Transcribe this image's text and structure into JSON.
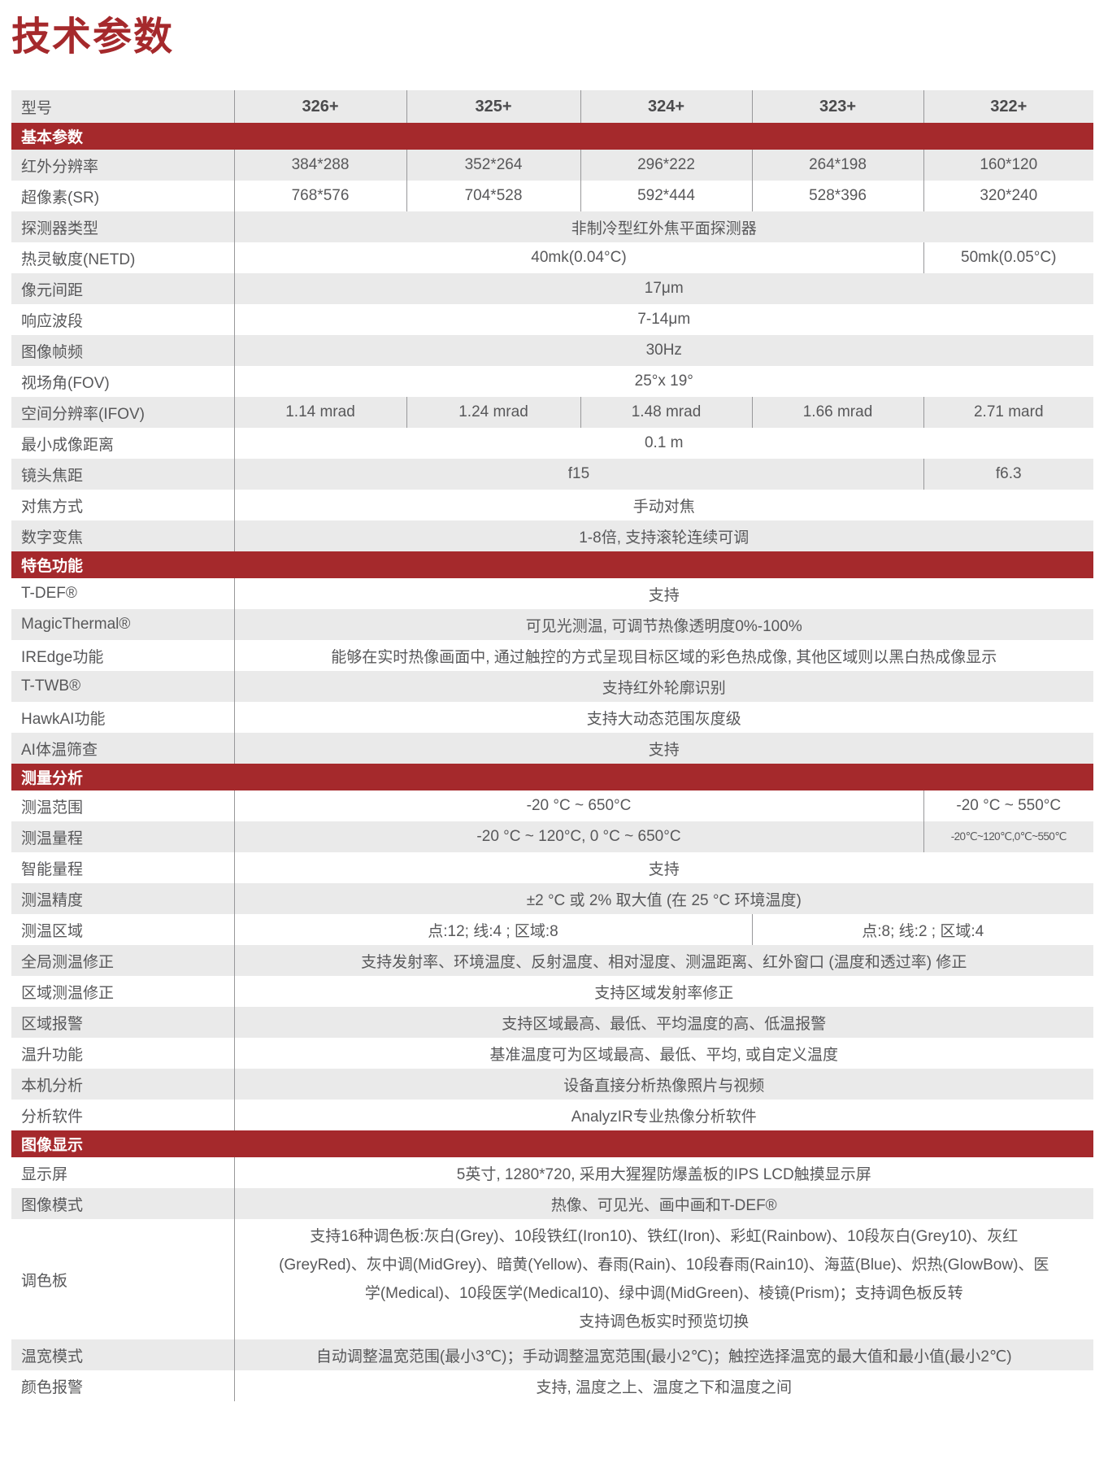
{
  "page_title": "技术参数",
  "colors": {
    "accent": "#A5292C",
    "row_shade": "#EAEAEA",
    "divider": "#98989A",
    "text": "#58585A",
    "header_text": "#4B4B4D"
  },
  "table": {
    "header": {
      "label": "型号",
      "models": [
        "326+",
        "325+",
        "324+",
        "323+",
        "322+"
      ]
    },
    "sections": [
      {
        "title": "基本参数",
        "rows": [
          {
            "label": "红外分辨率",
            "cells": [
              {
                "text": "384*288",
                "span": 1
              },
              {
                "text": "352*264",
                "span": 1
              },
              {
                "text": "296*222",
                "span": 1
              },
              {
                "text": "264*198",
                "span": 1
              },
              {
                "text": "160*120",
                "span": 1
              }
            ]
          },
          {
            "label": "超像素(SR)",
            "cells": [
              {
                "text": "768*576",
                "span": 1
              },
              {
                "text": "704*528",
                "span": 1
              },
              {
                "text": "592*444",
                "span": 1
              },
              {
                "text": "528*396",
                "span": 1
              },
              {
                "text": "320*240",
                "span": 1
              }
            ]
          },
          {
            "label": "探测器类型",
            "cells": [
              {
                "text": "非制冷型红外焦平面探测器",
                "span": 5
              }
            ]
          },
          {
            "label": "热灵敏度(NETD)",
            "cells": [
              {
                "text": "40mk(0.04°C)",
                "span": 4
              },
              {
                "text": "50mk(0.05°C)",
                "span": 1
              }
            ]
          },
          {
            "label": "像元间距",
            "cells": [
              {
                "text": "17μm",
                "span": 5
              }
            ]
          },
          {
            "label": "响应波段",
            "cells": [
              {
                "text": "7-14μm",
                "span": 5
              }
            ]
          },
          {
            "label": "图像帧频",
            "cells": [
              {
                "text": "30Hz",
                "span": 5
              }
            ]
          },
          {
            "label": "视场角(FOV)",
            "cells": [
              {
                "text": "25°x 19°",
                "span": 5
              }
            ]
          },
          {
            "label": "空间分辨率(IFOV)",
            "cells": [
              {
                "text": "1.14 mrad",
                "span": 1
              },
              {
                "text": "1.24 mrad",
                "span": 1
              },
              {
                "text": "1.48 mrad",
                "span": 1
              },
              {
                "text": "1.66 mrad",
                "span": 1
              },
              {
                "text": "2.71 mard",
                "span": 1
              }
            ]
          },
          {
            "label": "最小成像距离",
            "cells": [
              {
                "text": "0.1 m",
                "span": 5
              }
            ]
          },
          {
            "label": "镜头焦距",
            "cells": [
              {
                "text": "f15",
                "span": 4
              },
              {
                "text": "f6.3",
                "span": 1
              }
            ]
          },
          {
            "label": "对焦方式",
            "cells": [
              {
                "text": "手动对焦",
                "span": 5
              }
            ]
          },
          {
            "label": "数字变焦",
            "cells": [
              {
                "text": "1-8倍, 支持滚轮连续可调",
                "span": 5
              }
            ]
          }
        ]
      },
      {
        "title": "特色功能",
        "rows": [
          {
            "label": "T-DEF®",
            "cells": [
              {
                "text": "支持",
                "span": 5
              }
            ]
          },
          {
            "label": "MagicThermal®",
            "cells": [
              {
                "text": "可见光测温, 可调节热像透明度0%-100%",
                "span": 5
              }
            ]
          },
          {
            "label": "IREdge功能",
            "cells": [
              {
                "text": "能够在实时热像画面中, 通过触控的方式呈现目标区域的彩色热成像, 其他区域则以黑白热成像显示",
                "span": 5
              }
            ]
          },
          {
            "label": "T-TWB®",
            "cells": [
              {
                "text": "支持红外轮廓识别",
                "span": 5
              }
            ]
          },
          {
            "label": "HawkAI功能",
            "cells": [
              {
                "text": "支持大动态范围灰度级",
                "span": 5
              }
            ]
          },
          {
            "label": "AI体温筛查",
            "cells": [
              {
                "text": "支持",
                "span": 5
              }
            ]
          }
        ]
      },
      {
        "title": "测量分析",
        "rows": [
          {
            "label": "测温范围",
            "cells": [
              {
                "text": "-20 °C ~ 650°C",
                "span": 4
              },
              {
                "text": "-20 °C ~ 550°C",
                "span": 1
              }
            ]
          },
          {
            "label": "测温量程",
            "cells": [
              {
                "text": "-20 °C ~ 120°C, 0 °C ~ 650°C",
                "span": 4
              },
              {
                "text": "-20℃~120℃,0℃~550℃",
                "span": 1,
                "small": true
              }
            ]
          },
          {
            "label": "智能量程",
            "cells": [
              {
                "text": "支持",
                "span": 5
              }
            ]
          },
          {
            "label": "测温精度",
            "cells": [
              {
                "text": "±2 °C 或 2% 取大值 (在 25 °C 环境温度)",
                "span": 5
              }
            ]
          },
          {
            "label": "测温区域",
            "cells": [
              {
                "text": "点:12; 线:4 ; 区域:8",
                "span": 3
              },
              {
                "text": "点:8; 线:2 ; 区域:4",
                "span": 2
              }
            ]
          },
          {
            "label": "全局测温修正",
            "cells": [
              {
                "text": "支持发射率、环境温度、反射温度、相对湿度、测温距离、红外窗口 (温度和透过率) 修正",
                "span": 5
              }
            ]
          },
          {
            "label": "区域测温修正",
            "cells": [
              {
                "text": "支持区域发射率修正",
                "span": 5
              }
            ]
          },
          {
            "label": "区域报警",
            "cells": [
              {
                "text": "支持区域最高、最低、平均温度的高、低温报警",
                "span": 5
              }
            ]
          },
          {
            "label": "温升功能",
            "cells": [
              {
                "text": "基准温度可为区域最高、最低、平均, 或自定义温度",
                "span": 5
              }
            ]
          },
          {
            "label": "本机分析",
            "cells": [
              {
                "text": "设备直接分析热像照片与视频",
                "span": 5
              }
            ]
          },
          {
            "label": "分析软件",
            "cells": [
              {
                "text": "AnalyzIR专业热像分析软件",
                "span": 5
              }
            ]
          }
        ]
      },
      {
        "title": "图像显示",
        "rows": [
          {
            "label": "显示屏",
            "cells": [
              {
                "text": "5英寸, 1280*720, 采用大猩猩防爆盖板的IPS LCD触摸显示屏",
                "span": 5
              }
            ]
          },
          {
            "label": "图像模式",
            "cells": [
              {
                "text": "热像、可见光、画中画和T-DEF®",
                "span": 5
              }
            ]
          },
          {
            "label": "调色板",
            "cells": [
              {
                "span": 5,
                "lines": [
                  "支持16种调色板:灰白(Grey)、10段铁红(Iron10)、铁红(Iron)、彩虹(Rainbow)、10段灰白(Grey10)、灰红",
                  "(GreyRed)、灰中调(MidGrey)、暗黄(Yellow)、春雨(Rain)、10段春雨(Rain10)、海蓝(Blue)、炽热(GlowBow)、医",
                  "学(Medical)、10段医学(Medical10)、绿中调(MidGreen)、棱镜(Prism)；支持调色板反转",
                  "支持调色板实时预览切换"
                ]
              }
            ]
          },
          {
            "label": "温宽模式",
            "cells": [
              {
                "text": "自动调整温宽范围(最小3℃)；手动调整温宽范围(最小2℃)；触控选择温宽的最大值和最小值(最小2℃)",
                "span": 5
              }
            ]
          },
          {
            "label": "颜色报警",
            "cells": [
              {
                "text": "支持, 温度之上、温度之下和温度之间",
                "span": 5
              }
            ]
          }
        ]
      }
    ]
  }
}
